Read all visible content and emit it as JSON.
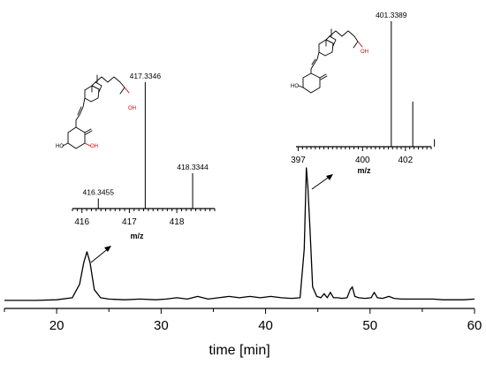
{
  "chart_data": [
    {
      "type": "line",
      "xlabel": "time [min]",
      "xlim": [
        15,
        60
      ],
      "x_ticks": [
        20,
        30,
        40,
        50,
        60
      ],
      "series": [
        {
          "x": [
            15,
            18,
            20,
            21.5,
            22.2,
            22.6,
            22.9,
            23.2,
            23.6,
            24.2,
            25,
            26.5,
            28,
            29.5,
            30.5,
            31.5,
            32.5,
            33.5,
            34.5,
            35.5,
            36.5,
            37.5,
            38.5,
            39.5,
            40.5,
            41.5,
            42.5,
            43.3,
            43.7,
            43.9,
            44.05,
            44.25,
            44.5,
            44.9,
            45.3,
            45.6,
            45.9,
            46.2,
            46.5,
            46.9,
            47.3,
            47.8,
            48.1,
            48.3,
            48.55,
            48.9,
            49.5,
            50.1,
            50.4,
            50.7,
            51.2,
            51.8,
            52.3,
            53,
            54,
            55,
            56,
            57,
            58,
            59,
            60
          ],
          "y": [
            0.02,
            0.02,
            0.025,
            0.04,
            0.14,
            0.3,
            0.38,
            0.3,
            0.1,
            0.04,
            0.03,
            0.025,
            0.03,
            0.025,
            0.03,
            0.04,
            0.03,
            0.05,
            0.03,
            0.04,
            0.05,
            0.04,
            0.05,
            0.04,
            0.05,
            0.04,
            0.035,
            0.04,
            0.4,
            1.0,
            0.86,
            0.55,
            0.12,
            0.05,
            0.04,
            0.07,
            0.04,
            0.08,
            0.04,
            0.04,
            0.035,
            0.04,
            0.1,
            0.12,
            0.05,
            0.04,
            0.035,
            0.04,
            0.08,
            0.04,
            0.035,
            0.05,
            0.035,
            0.03,
            0.03,
            0.03,
            0.03,
            0.025,
            0.025,
            0.025,
            0.03
          ]
        }
      ]
    },
    {
      "type": "bar",
      "xlabel": "m/z",
      "xlim": [
        415.8,
        418.8
      ],
      "x_ticks": [
        416,
        417,
        418
      ],
      "peaks": [
        {
          "x": 416.3455,
          "y": 0.08,
          "label": "416.3455"
        },
        {
          "x": 417.3346,
          "y": 1.0,
          "label": "417.3346"
        },
        {
          "x": 418.3344,
          "y": 0.28,
          "label": "418.3344"
        }
      ]
    },
    {
      "type": "bar",
      "xlabel": "m/z",
      "xlim": [
        396.9,
        403.2
      ],
      "x_ticks": [
        397,
        400,
        402
      ],
      "peaks": [
        {
          "x": 401.3389,
          "y": 1.0,
          "label": "401.3389"
        },
        {
          "x": 402.34,
          "y": 0.36,
          "label": ""
        },
        {
          "x": 403.35,
          "y": 0.06,
          "label": ""
        }
      ]
    }
  ],
  "structures": {
    "left": {
      "ho_label": "HO",
      "oh_ring_label": "OH",
      "oh_chain_label": "OH"
    },
    "right": {
      "ho_label": "HO",
      "oh_chain_label": "OH"
    }
  }
}
